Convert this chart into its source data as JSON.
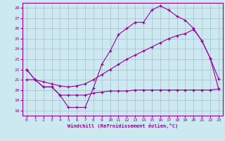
{
  "xlabel": "Windchill (Refroidissement éolien,°C)",
  "background_color": "#cce8f0",
  "grid_color": "#aabbcc",
  "line_color": "#990099",
  "xlim": [
    -0.5,
    23.5
  ],
  "ylim": [
    17.5,
    28.5
  ],
  "yticks": [
    18,
    19,
    20,
    21,
    22,
    23,
    24,
    25,
    26,
    27,
    28
  ],
  "xticks": [
    0,
    1,
    2,
    3,
    4,
    5,
    6,
    7,
    8,
    9,
    10,
    11,
    12,
    13,
    14,
    15,
    16,
    17,
    18,
    19,
    20,
    21,
    22,
    23
  ],
  "series": [
    {
      "x": [
        0,
        1,
        2,
        3,
        4,
        5,
        6,
        7,
        8,
        9,
        10,
        11,
        12,
        13,
        14,
        15,
        16,
        17,
        18,
        19,
        20,
        21,
        22,
        23
      ],
      "y": [
        22,
        21,
        20.3,
        20.3,
        19.5,
        18.3,
        18.3,
        18.3,
        20.2,
        22.5,
        23.8,
        25.4,
        26.0,
        26.6,
        26.6,
        27.8,
        28.2,
        27.8,
        27.2,
        26.8,
        26.0,
        24.8,
        23.1,
        21.1
      ]
    },
    {
      "x": [
        0,
        1,
        2,
        3,
        4,
        5,
        6,
        7,
        8,
        9,
        10,
        11,
        12,
        13,
        14,
        15,
        16,
        17,
        18,
        19,
        20,
        21,
        22,
        23
      ],
      "y": [
        21.0,
        21.0,
        20.8,
        20.6,
        20.4,
        20.3,
        20.4,
        20.6,
        21.0,
        21.5,
        22.0,
        22.5,
        23.0,
        23.4,
        23.8,
        24.2,
        24.6,
        25.0,
        25.3,
        25.5,
        25.9,
        24.8,
        23.1,
        20.1
      ]
    },
    {
      "x": [
        0,
        1,
        2,
        3,
        4,
        5,
        6,
        7,
        8,
        9,
        10,
        11,
        12,
        13,
        14,
        15,
        16,
        17,
        18,
        19,
        20,
        21,
        22,
        23
      ],
      "y": [
        22.0,
        21.0,
        20.3,
        20.3,
        19.5,
        19.5,
        19.5,
        19.5,
        19.7,
        19.8,
        19.9,
        19.9,
        19.9,
        20.0,
        20.0,
        20.0,
        20.0,
        20.0,
        20.0,
        20.0,
        20.0,
        20.0,
        20.0,
        20.1
      ]
    }
  ]
}
